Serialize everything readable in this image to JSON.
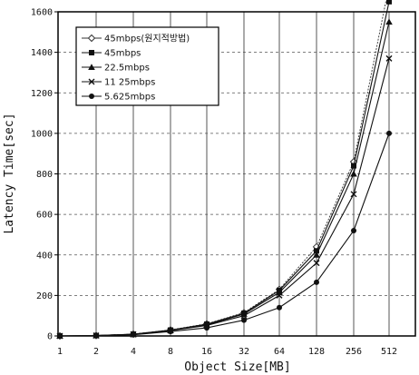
{
  "chart_data": {
    "type": "line",
    "title": "",
    "xlabel": "Object Size[MB]",
    "ylabel": "Latency Time[sec]",
    "x": [
      "1",
      "2",
      "4",
      "8",
      "16",
      "32",
      "64",
      "128",
      "256",
      "512"
    ],
    "y_ticks": [
      "0",
      "200",
      "400",
      "600",
      "800",
      "1000",
      "1200",
      "1400",
      "1600"
    ],
    "ylim": [
      0,
      1600
    ],
    "grid": true,
    "legend_position": "top-left",
    "series": [
      {
        "name": "45mbps(원지적방법)",
        "marker": "open-diamond",
        "color": "#333333",
        "values": [
          0,
          2,
          9,
          30,
          60,
          115,
          230,
          440,
          860,
          1730
        ]
      },
      {
        "name": "45mbps",
        "marker": "filled-square",
        "color": "#111111",
        "values": [
          0,
          2,
          9,
          29,
          58,
          112,
          225,
          420,
          840,
          1650
        ]
      },
      {
        "name": "22.5mbps",
        "marker": "filled-triangle",
        "color": "#111111",
        "values": [
          0,
          2,
          8,
          28,
          55,
          108,
          215,
          400,
          800,
          1550
        ]
      },
      {
        "name": "11 25mbps",
        "marker": "x",
        "color": "#111111",
        "values": [
          0,
          2,
          8,
          27,
          52,
          100,
          200,
          360,
          700,
          1370
        ]
      },
      {
        "name": "5.625mbps",
        "marker": "filled-circle",
        "color": "#111111",
        "values": [
          0,
          1,
          6,
          22,
          40,
          78,
          140,
          265,
          520,
          1000
        ]
      }
    ]
  }
}
